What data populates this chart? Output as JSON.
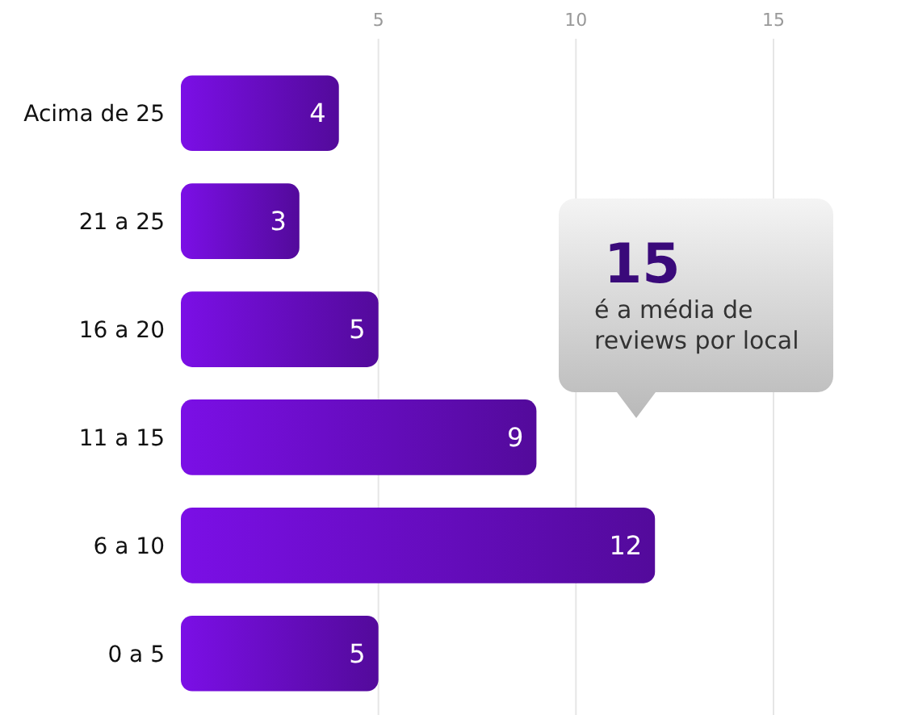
{
  "chart_data": {
    "type": "bar",
    "orientation": "horizontal",
    "categories": [
      "Acima de 25",
      "21 a 25",
      "16 a 20",
      "11 a 15",
      "6 a 10",
      "0 a 5"
    ],
    "values": [
      4,
      3,
      5,
      9,
      12,
      5
    ],
    "color": "#7b0fe6",
    "xlim": [
      0,
      15
    ],
    "xticks": [
      5,
      10,
      15
    ],
    "grid": "x",
    "data_labels": true,
    "annotations": [
      "15",
      "é a média de reviews por local"
    ]
  }
}
